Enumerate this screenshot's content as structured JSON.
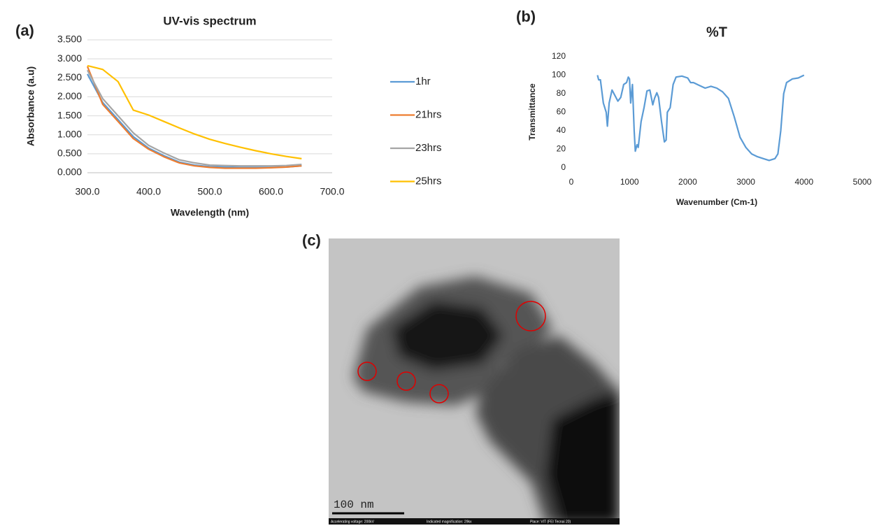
{
  "chart_data": [
    {
      "type": "line",
      "label": "(a)",
      "title": "UV-vis spectrum",
      "x_label": "Wavelength (nm)",
      "y_label": "Absorbance (a.u)",
      "x": [
        300,
        325,
        350,
        375,
        400,
        425,
        450,
        475,
        500,
        525,
        550,
        575,
        600,
        625,
        650
      ],
      "series": [
        {
          "name": "1hr",
          "color": "#5b9bd5",
          "values": [
            2.6,
            1.85,
            1.4,
            0.95,
            0.65,
            0.45,
            0.28,
            0.2,
            0.16,
            0.15,
            0.14,
            0.14,
            0.14,
            0.15,
            0.18
          ]
        },
        {
          "name": "21hrs",
          "color": "#ed7d31",
          "values": [
            2.8,
            1.8,
            1.35,
            0.9,
            0.62,
            0.42,
            0.26,
            0.18,
            0.14,
            0.12,
            0.12,
            0.12,
            0.13,
            0.15,
            0.18
          ]
        },
        {
          "name": "23hrs",
          "color": "#a5a5a5",
          "values": [
            2.7,
            1.95,
            1.5,
            1.05,
            0.72,
            0.52,
            0.34,
            0.26,
            0.2,
            0.19,
            0.18,
            0.18,
            0.18,
            0.19,
            0.22
          ]
        },
        {
          "name": "25hrs",
          "color": "#ffc000",
          "values": [
            2.82,
            2.72,
            2.4,
            1.65,
            1.52,
            1.35,
            1.18,
            1.02,
            0.88,
            0.77,
            0.67,
            0.58,
            0.5,
            0.43,
            0.37
          ]
        }
      ],
      "xlim": [
        300,
        700
      ],
      "xticks": [
        {
          "value": 300,
          "label": "300.0"
        },
        {
          "value": 400,
          "label": "400.0"
        },
        {
          "value": 500,
          "label": "500.0"
        },
        {
          "value": 600,
          "label": "600.0"
        },
        {
          "value": 700,
          "label": "700.0"
        }
      ],
      "ylim": [
        0,
        3.5
      ],
      "yticks": [
        {
          "value": 0,
          "label": "0.000"
        },
        {
          "value": 0.5,
          "label": "0.500"
        },
        {
          "value": 1,
          "label": "1.000"
        },
        {
          "value": 1.5,
          "label": "1.500"
        },
        {
          "value": 2,
          "label": "2.000"
        },
        {
          "value": 2.5,
          "label": "2.500"
        },
        {
          "value": 3,
          "label": "3.000"
        },
        {
          "value": 3.5,
          "label": "3.500"
        }
      ],
      "grid": true,
      "legend": "right"
    },
    {
      "type": "line",
      "label": "(b)",
      "title": "%T",
      "x_label": "Wavenumber (Cm-1)",
      "y_label": "Transmittance",
      "color": "#5b9bd5",
      "x": [
        450,
        470,
        500,
        550,
        600,
        620,
        650,
        700,
        750,
        800,
        850,
        900,
        950,
        980,
        1000,
        1020,
        1050,
        1080,
        1100,
        1130,
        1150,
        1200,
        1250,
        1300,
        1350,
        1400,
        1430,
        1470,
        1500,
        1550,
        1600,
        1630,
        1650,
        1700,
        1750,
        1800,
        1900,
        2000,
        2050,
        2100,
        2200,
        2300,
        2400,
        2500,
        2600,
        2700,
        2800,
        2900,
        3000,
        3100,
        3200,
        3300,
        3400,
        3500,
        3550,
        3600,
        3650,
        3700,
        3800,
        3900,
        4000
      ],
      "values": [
        100,
        95,
        95,
        70,
        60,
        45,
        70,
        84,
        78,
        72,
        76,
        90,
        92,
        98,
        96,
        70,
        90,
        40,
        18,
        25,
        22,
        50,
        65,
        83,
        84,
        68,
        75,
        81,
        76,
        50,
        28,
        30,
        60,
        65,
        90,
        98,
        99,
        97,
        92,
        92,
        89,
        86,
        88,
        86,
        82,
        75,
        55,
        33,
        22,
        15,
        12,
        10,
        8,
        10,
        15,
        40,
        80,
        92,
        96,
        97,
        100
      ],
      "xlim": [
        0,
        5000
      ],
      "xticks": [
        0,
        1000,
        2000,
        3000,
        4000,
        5000
      ],
      "ylim": [
        0,
        120
      ],
      "yticks": [
        0,
        20,
        40,
        60,
        80,
        100,
        120
      ],
      "grid": false
    }
  ],
  "image": {
    "label": "(c)",
    "scale_bar": "100 nm",
    "footer": [
      "Accelerating voltage: 200kV",
      "Indicated magnification: 29kx",
      "Place: VIT (FEI Tecnai 20)"
    ]
  }
}
